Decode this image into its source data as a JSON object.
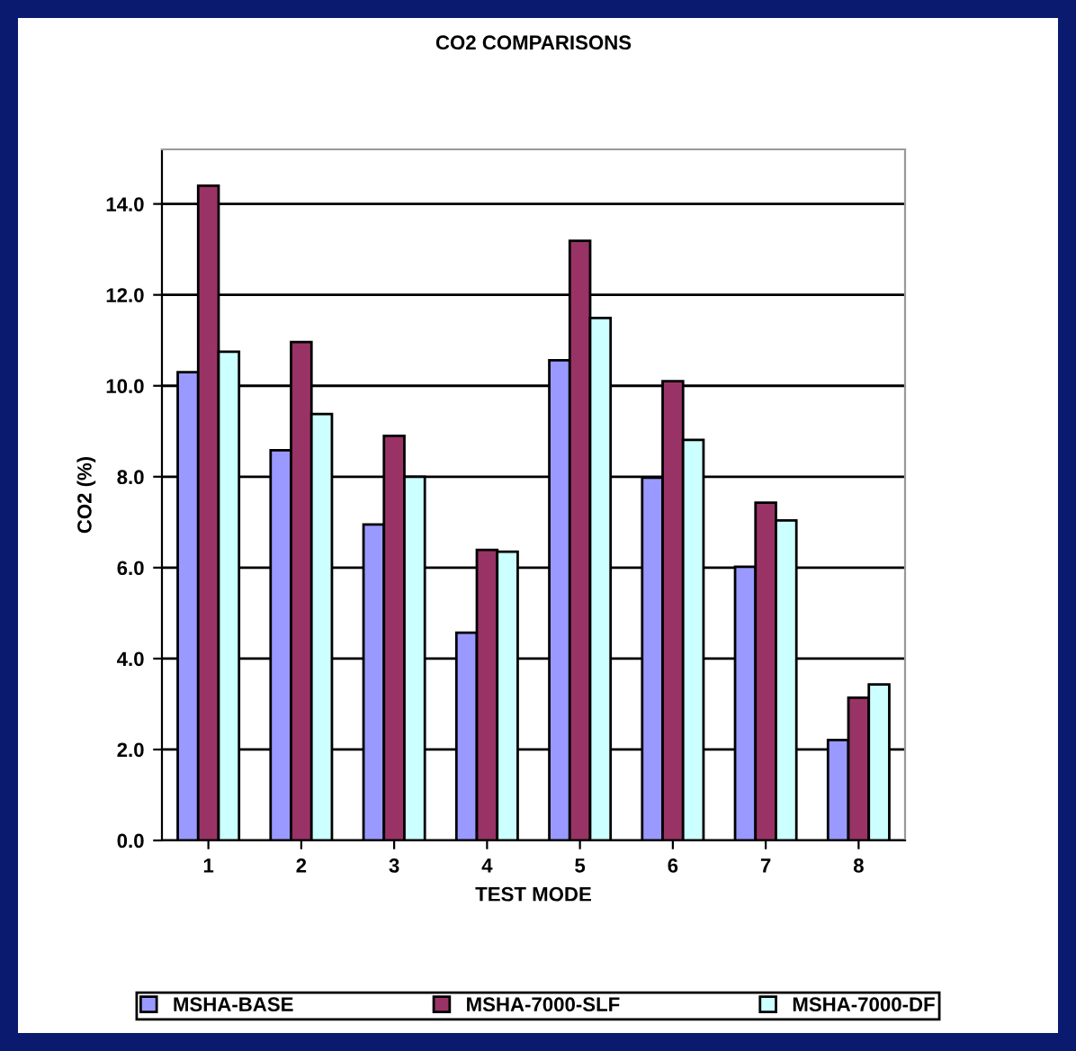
{
  "chart_data": {
    "type": "bar",
    "title": "CO2 COMPARISONS",
    "xlabel": "TEST MODE",
    "ylabel": "CO2 (%)",
    "categories": [
      "1",
      "2",
      "3",
      "4",
      "5",
      "6",
      "7",
      "8"
    ],
    "series": [
      {
        "name": "MSHA-BASE",
        "color": "#9999ff",
        "values": [
          10.3,
          8.58,
          6.95,
          4.57,
          10.56,
          7.98,
          6.02,
          2.21
        ]
      },
      {
        "name": "MSHA-7000-SLF",
        "color": "#993366",
        "values": [
          14.4,
          10.96,
          8.9,
          6.39,
          13.19,
          10.1,
          7.43,
          3.14
        ]
      },
      {
        "name": "MSHA-7000-DF",
        "color": "#ccffff",
        "values": [
          10.75,
          9.38,
          8.0,
          6.35,
          11.49,
          8.81,
          7.04,
          3.43
        ]
      }
    ],
    "ylim": [
      0,
      15.2
    ],
    "yticks": [
      {
        "value": 0,
        "label": "0.0"
      },
      {
        "value": 2,
        "label": "2.0"
      },
      {
        "value": 4,
        "label": "4.0"
      },
      {
        "value": 6,
        "label": "6.0"
      },
      {
        "value": 8,
        "label": "8.0"
      },
      {
        "value": 10,
        "label": "10.0"
      },
      {
        "value": 12,
        "label": "12.0"
      },
      {
        "value": 14,
        "label": "14.0"
      }
    ],
    "grid": "y",
    "legend": "bottom"
  }
}
